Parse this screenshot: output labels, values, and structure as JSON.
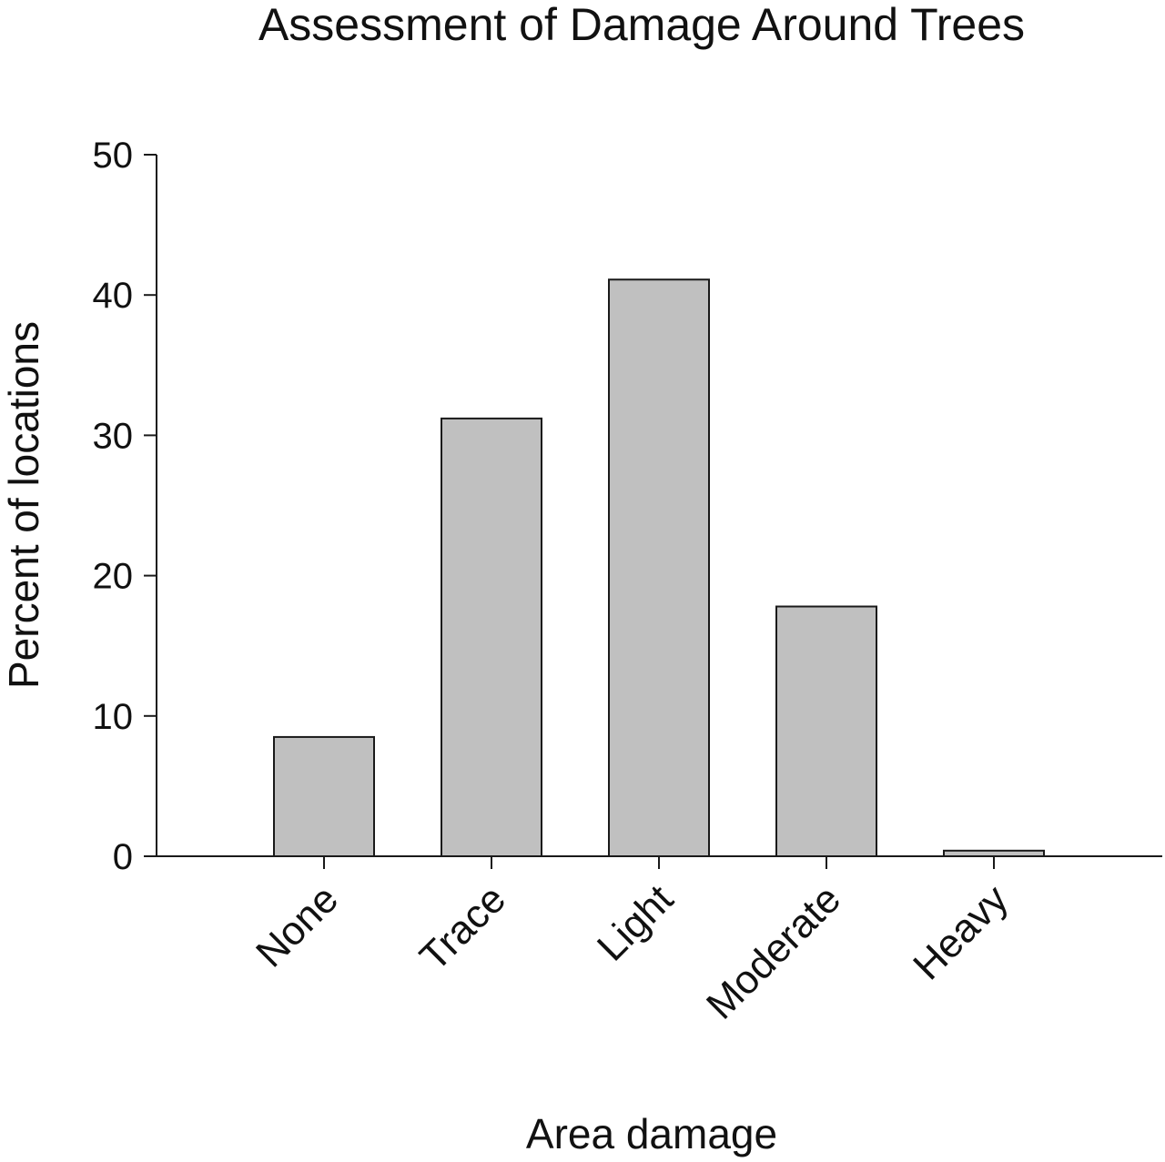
{
  "chart_data": {
    "type": "bar",
    "title": "Assessment of Damage Around Trees",
    "xlabel": "Area damage",
    "ylabel": "Percent of locations",
    "categories": [
      "None",
      "Trace",
      "Light",
      "Moderate",
      "Heavy"
    ],
    "values": [
      8.5,
      31.2,
      41.1,
      17.8,
      0.4
    ],
    "ylim": [
      0,
      50
    ],
    "yticks": [
      0,
      10,
      20,
      30,
      40,
      50
    ],
    "grid": false,
    "legend": "none",
    "bar_color": "#c0c0c0",
    "edge_color": "#1a1a1a"
  }
}
